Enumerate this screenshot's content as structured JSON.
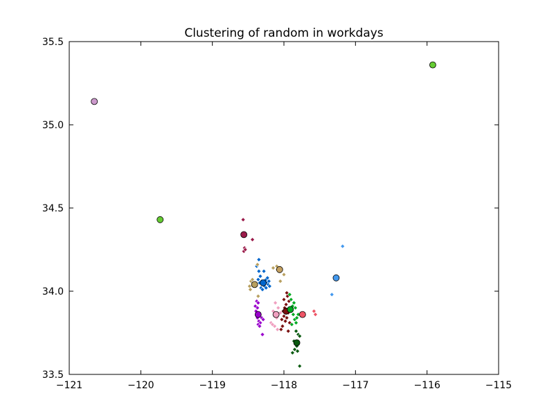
{
  "chart_data": {
    "type": "scatter",
    "title": "Clustering of random in workdays",
    "xlabel": "",
    "ylabel": "",
    "xlim": [
      -121,
      -115
    ],
    "ylim": [
      33.5,
      35.5
    ],
    "x_ticks": [
      -121,
      -120,
      -119,
      -118,
      -117,
      -116,
      -115
    ],
    "y_ticks": [
      33.5,
      34.0,
      34.5,
      35.0,
      35.5
    ],
    "x_tick_labels": [
      "−121",
      "−120",
      "−119",
      "−118",
      "−117",
      "−116",
      "−115"
    ],
    "y_tick_labels": [
      "33.5",
      "34.0",
      "34.5",
      "35.0",
      "35.5"
    ],
    "grid": false,
    "series": [
      {
        "color": "#9b1b4a",
        "points": [
          [
            -118.57,
            34.43
          ],
          [
            -118.55,
            34.26
          ],
          [
            -118.56,
            34.24
          ],
          [
            -118.54,
            34.25
          ],
          [
            -118.44,
            34.31
          ]
        ],
        "centroid": [
          -118.56,
          34.34
        ]
      },
      {
        "color": "#0066cc",
        "points": [
          [
            -118.35,
            34.19
          ],
          [
            -118.38,
            34.15
          ],
          [
            -118.35,
            34.12
          ],
          [
            -118.28,
            34.12
          ],
          [
            -118.33,
            34.09
          ],
          [
            -118.36,
            34.07
          ],
          [
            -118.31,
            34.06
          ],
          [
            -118.25,
            34.07
          ],
          [
            -118.24,
            34.05
          ],
          [
            -118.22,
            34.04
          ],
          [
            -118.2,
            34.03
          ],
          [
            -118.27,
            34.03
          ],
          [
            -118.32,
            34.02
          ],
          [
            -118.3,
            34.01
          ],
          [
            -118.25,
            34.02
          ],
          [
            -118.28,
            34.05
          ],
          [
            -118.23,
            34.08
          ],
          [
            -118.34,
            34.05
          ],
          [
            -118.21,
            34.06
          ]
        ],
        "centroid": [
          -118.29,
          34.05
        ]
      },
      {
        "color": "#b8a060",
        "points": [
          [
            -118.37,
            34.16
          ],
          [
            -118.46,
            34.06
          ],
          [
            -118.48,
            34.03
          ],
          [
            -118.47,
            34.01
          ],
          [
            -118.44,
            34.07
          ],
          [
            -118.4,
            34.05
          ],
          [
            -118.36,
            33.97
          ],
          [
            -118.15,
            34.14
          ],
          [
            -118.1,
            34.15
          ],
          [
            -118.0,
            34.1
          ],
          [
            -118.05,
            34.06
          ],
          [
            -118.09,
            34.13
          ]
        ],
        "centroid": [
          -118.41,
          34.04
        ]
      },
      {
        "color": "#c4a060",
        "points": [],
        "centroid": [
          -118.06,
          34.13
        ]
      },
      {
        "color": "#9900cc",
        "points": [
          [
            -118.38,
            33.94
          ],
          [
            -118.36,
            33.93
          ],
          [
            -118.4,
            33.91
          ],
          [
            -118.37,
            33.9
          ],
          [
            -118.39,
            33.88
          ],
          [
            -118.35,
            33.87
          ],
          [
            -118.38,
            33.86
          ],
          [
            -118.34,
            33.85
          ],
          [
            -118.37,
            33.84
          ],
          [
            -118.31,
            33.84
          ],
          [
            -118.35,
            33.82
          ],
          [
            -118.33,
            33.81
          ],
          [
            -118.36,
            33.8
          ],
          [
            -118.34,
            33.79
          ],
          [
            -118.29,
            33.83
          ],
          [
            -118.3,
            33.74
          ]
        ],
        "centroid": [
          -118.36,
          33.86
        ]
      },
      {
        "color": "#f0a0c0",
        "points": [
          [
            -118.12,
            33.93
          ],
          [
            -118.08,
            33.9
          ],
          [
            -118.15,
            33.88
          ],
          [
            -118.05,
            33.87
          ],
          [
            -118.1,
            33.84
          ],
          [
            -118.18,
            33.81
          ],
          [
            -118.13,
            33.79
          ],
          [
            -118.09,
            33.77
          ],
          [
            -118.16,
            33.8
          ]
        ],
        "centroid": [
          -118.11,
          33.86
        ]
      },
      {
        "color": "#7a1010",
        "points": [
          [
            -117.96,
            33.99
          ],
          [
            -117.95,
            33.97
          ],
          [
            -118.0,
            33.95
          ],
          [
            -117.93,
            33.94
          ],
          [
            -117.97,
            33.92
          ],
          [
            -117.99,
            33.9
          ],
          [
            -118.01,
            33.88
          ],
          [
            -117.94,
            33.87
          ],
          [
            -118.0,
            33.85
          ],
          [
            -117.96,
            33.84
          ],
          [
            -118.03,
            33.83
          ],
          [
            -117.98,
            33.82
          ],
          [
            -117.92,
            33.81
          ],
          [
            -118.02,
            33.79
          ],
          [
            -118.04,
            33.77
          ],
          [
            -117.94,
            33.76
          ]
        ],
        "centroid": [
          -117.97,
          33.88
        ]
      },
      {
        "color": "#00aa22",
        "points": [
          [
            -117.92,
            33.98
          ],
          [
            -117.9,
            33.95
          ],
          [
            -117.86,
            33.93
          ],
          [
            -117.88,
            33.91
          ],
          [
            -117.84,
            33.9
          ],
          [
            -117.91,
            33.88
          ],
          [
            -117.87,
            33.86
          ],
          [
            -117.85,
            33.83
          ],
          [
            -117.83,
            33.81
          ],
          [
            -117.89,
            33.8
          ],
          [
            -117.82,
            33.84
          ],
          [
            -117.8,
            33.86
          ]
        ],
        "centroid": [
          -117.91,
          33.89
        ]
      },
      {
        "color": "#ee5566",
        "points": [
          [
            -117.58,
            33.88
          ],
          [
            -117.56,
            33.86
          ]
        ],
        "centroid": [
          -117.74,
          33.86
        ]
      },
      {
        "color": "#0a5a10",
        "points": [
          [
            -117.83,
            33.76
          ],
          [
            -117.8,
            33.74
          ],
          [
            -117.78,
            33.73
          ],
          [
            -117.86,
            33.7
          ],
          [
            -117.82,
            33.67
          ],
          [
            -117.85,
            33.65
          ],
          [
            -117.81,
            33.64
          ],
          [
            -117.88,
            33.63
          ],
          [
            -117.78,
            33.55
          ]
        ],
        "centroid": [
          -117.82,
          33.69
        ]
      },
      {
        "color": "#4499ee",
        "points": [
          [
            -117.18,
            34.27
          ],
          [
            -117.33,
            33.98
          ]
        ],
        "centroid": [
          -117.27,
          34.08
        ]
      },
      {
        "color": "#66cc33",
        "points": [],
        "centroid": [
          -119.73,
          34.43
        ]
      },
      {
        "color": "#66cc33",
        "points": [],
        "centroid": [
          -115.92,
          35.36
        ]
      },
      {
        "color": "#cc99cc",
        "points": [],
        "centroid": [
          -120.65,
          35.14
        ]
      }
    ]
  }
}
